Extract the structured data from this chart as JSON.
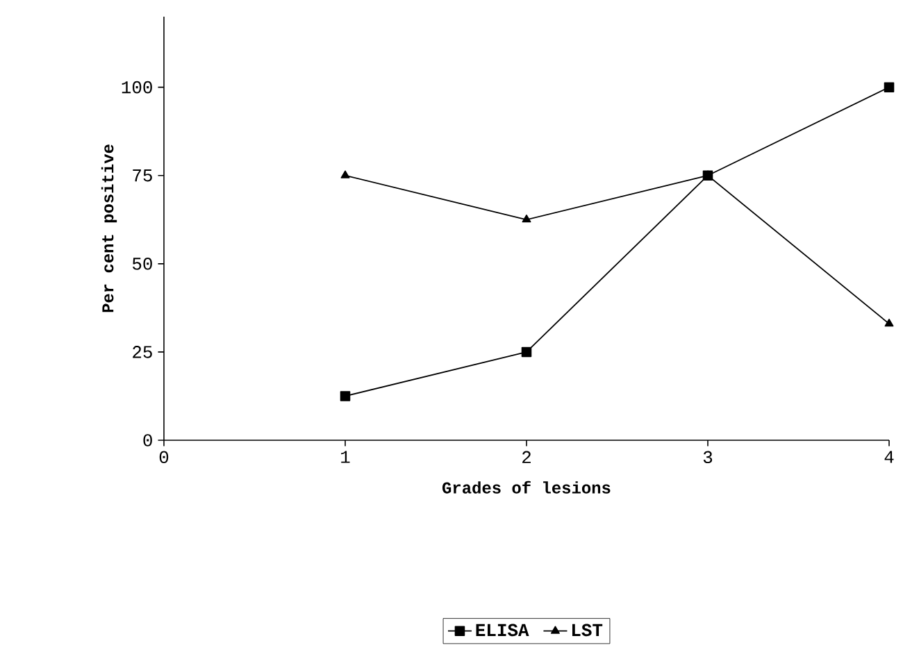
{
  "chart_data": {
    "type": "line",
    "xlabel": "Grades of lesions",
    "ylabel": "Per cent positive",
    "x": [
      1,
      2,
      3,
      4
    ],
    "series": [
      {
        "name": "ELISA",
        "color": "#000000",
        "marker": "square",
        "values": [
          12.5,
          25,
          75,
          100
        ]
      },
      {
        "name": "LST",
        "color": "#000000",
        "marker": "triangle",
        "values": [
          75,
          62.5,
          75,
          33
        ]
      }
    ],
    "xlim": [
      0,
      4
    ],
    "xticks": [
      0,
      1,
      2,
      3,
      4
    ],
    "ylim": [
      0,
      120
    ],
    "yticks": [
      0,
      25,
      50,
      75,
      100
    ],
    "grid": false,
    "legend": "bottom",
    "line_style": "solid"
  }
}
